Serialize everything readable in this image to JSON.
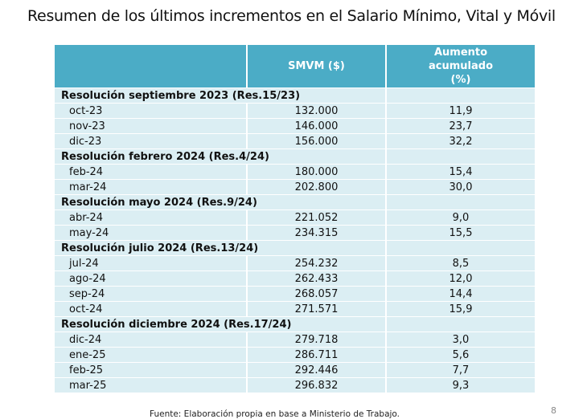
{
  "title": "Resumen de los últimos incrementos en el Salario Mínimo, Vital y Móvil",
  "columns": [
    "",
    "SMVM ($)",
    "Aumento acumulado (%)"
  ],
  "groups": [
    {
      "label": "Resolución septiembre 2023 (Res.15/23)",
      "rows": [
        [
          "oct-23",
          "132.000",
          "11,9"
        ],
        [
          "nov-23",
          "146.000",
          "23,7"
        ],
        [
          "dic-23",
          "156.000",
          "32,2"
        ]
      ]
    },
    {
      "label": "Resolución febrero 2024 (Res.4/24)",
      "rows": [
        [
          "feb-24",
          "180.000",
          "15,4"
        ],
        [
          "mar-24",
          "202.800",
          "30,0"
        ]
      ]
    },
    {
      "label": "Resolución mayo 2024 (Res.9/24)",
      "rows": [
        [
          "abr-24",
          "221.052",
          "9,0"
        ],
        [
          "may-24",
          "234.315",
          "15,5"
        ]
      ]
    },
    {
      "label": "Resolución julio 2024 (Res.13/24)",
      "rows": [
        [
          "jul-24",
          "254.232",
          "8,5"
        ],
        [
          "ago-24",
          "262.433",
          "12,0"
        ],
        [
          "sep-24",
          "268.057",
          "14,4"
        ],
        [
          "oct-24",
          "271.571",
          "15,9"
        ]
      ]
    },
    {
      "label": "Resolución diciembre 2024  (Res.17/24)",
      "rows": [
        [
          "dic-24",
          "279.718",
          "3,0"
        ],
        [
          "ene-25",
          "286.711",
          "5,6"
        ],
        [
          "feb-25",
          "292.446",
          "7,7"
        ],
        [
          "mar-25",
          "296.832",
          "9,3"
        ]
      ]
    }
  ],
  "source": "Fuente: Elaboración propia en base a Ministerio de Trabajo.",
  "page_number": "8",
  "colors": {
    "header": "#4bacc6",
    "row": "#dbeef3"
  }
}
